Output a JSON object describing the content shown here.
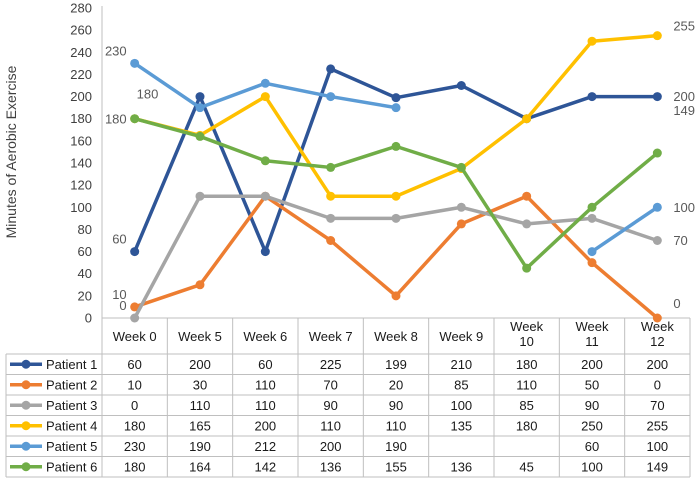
{
  "chart_data": {
    "type": "line",
    "title": "",
    "xlabel": "",
    "ylabel": "Minutes of Aerobic Exercise",
    "ylim": [
      0,
      280
    ],
    "ytick_step": 20,
    "grid": false,
    "legend": "data-table",
    "categories": [
      [
        "Week 0"
      ],
      [
        "Week 5"
      ],
      [
        "Week 6"
      ],
      [
        "Week 7"
      ],
      [
        "Week 8"
      ],
      [
        "Week 9"
      ],
      [
        "Week",
        "10"
      ],
      [
        "Week",
        "11"
      ],
      [
        "Week",
        "12"
      ]
    ],
    "series": [
      {
        "name": "Patient 1",
        "color": "#2E5597",
        "values": [
          60,
          200,
          60,
          225,
          199,
          210,
          180,
          200,
          200
        ],
        "first_label": "60",
        "last_label": "200"
      },
      {
        "name": "Patient 2",
        "color": "#ED7D31",
        "values": [
          10,
          30,
          110,
          70,
          20,
          85,
          110,
          50,
          0
        ],
        "first_label": "10",
        "last_label": "0"
      },
      {
        "name": "Patient 3",
        "color": "#A5A5A5",
        "values": [
          0,
          110,
          110,
          90,
          90,
          100,
          85,
          90,
          70
        ],
        "first_label": "0",
        "last_label": "70"
      },
      {
        "name": "Patient 4",
        "color": "#FFC000",
        "values": [
          180,
          165,
          200,
          110,
          110,
          135,
          180,
          250,
          255
        ],
        "first_label": "180",
        "last_label": "255"
      },
      {
        "name": "Patient 5",
        "color": "#5B9BD5",
        "values": [
          230,
          190,
          212,
          200,
          190,
          null,
          null,
          60,
          100
        ],
        "first_label": "230",
        "last_label": "100"
      },
      {
        "name": "Patient 6",
        "color": "#70AD47",
        "values": [
          180,
          164,
          142,
          136,
          155,
          136,
          45,
          100,
          149
        ],
        "first_label": "180",
        "last_label": "149"
      }
    ]
  }
}
